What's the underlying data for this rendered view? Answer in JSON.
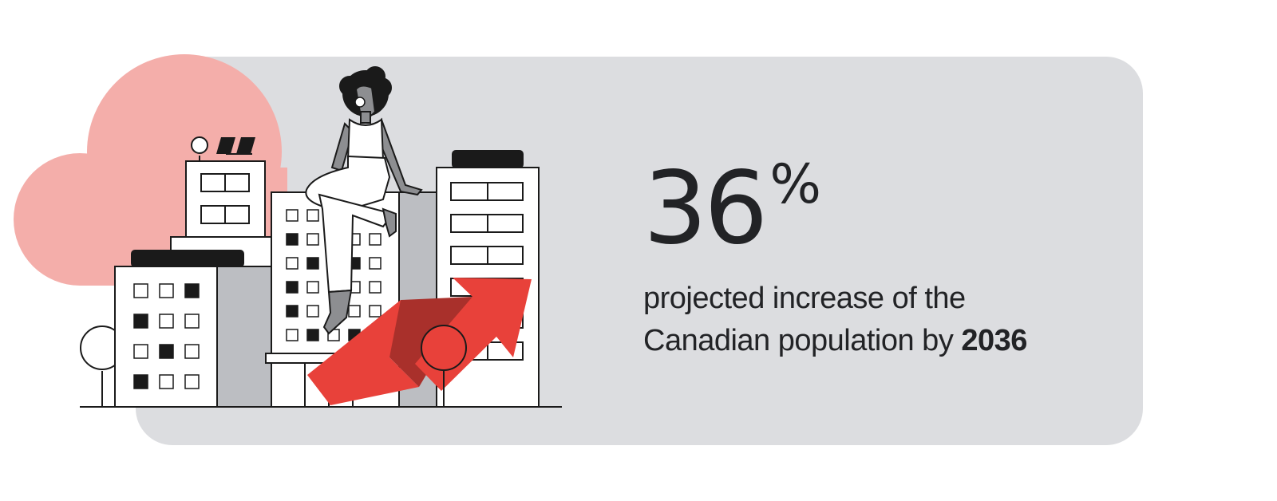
{
  "stat": {
    "number": "36",
    "unit": "%",
    "line1": "projected increase of the",
    "line2_prefix": "Canadian population by ",
    "line2_year": "2036"
  },
  "colors": {
    "card_bg": "#dcdde0",
    "cloud": "#f4aeaa",
    "arrow": "#e8413a",
    "arrow_dark": "#a9302b",
    "ink": "#1a1a1a",
    "building_shade": "#bcbec2",
    "text": "#222326"
  },
  "icons": [
    "cloud-icon",
    "city-buildings-icon",
    "woman-sitting-icon",
    "growth-arrow-icon",
    "tree-icon",
    "solar-panel-icon"
  ]
}
